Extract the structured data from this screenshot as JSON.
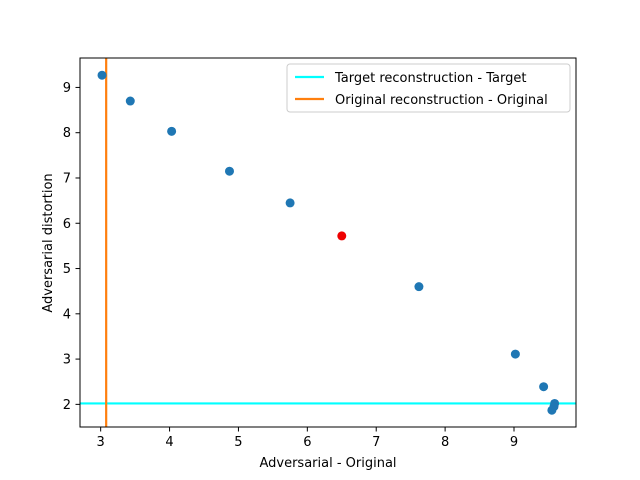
{
  "chart_data": {
    "type": "scatter",
    "xlabel": "Adversarial - Original",
    "ylabel": "Adversarial distortion",
    "xlim": [
      2.7,
      9.9
    ],
    "ylim": [
      1.5,
      9.65
    ],
    "xticks": [
      3,
      4,
      5,
      6,
      7,
      8,
      9
    ],
    "yticks": [
      2,
      3,
      4,
      5,
      6,
      7,
      8,
      9
    ],
    "grid": false,
    "legend_position": "top-right",
    "series": [
      {
        "color": "#1f77b4",
        "points": [
          {
            "x": 3.02,
            "y": 9.27
          },
          {
            "x": 3.43,
            "y": 8.7
          },
          {
            "x": 4.03,
            "y": 8.03
          },
          {
            "x": 4.87,
            "y": 7.15
          },
          {
            "x": 5.75,
            "y": 6.45
          },
          {
            "x": 7.62,
            "y": 4.6
          },
          {
            "x": 9.02,
            "y": 3.11
          },
          {
            "x": 9.43,
            "y": 2.39
          },
          {
            "x": 9.59,
            "y": 2.02
          },
          {
            "x": 9.58,
            "y": 1.95
          },
          {
            "x": 9.55,
            "y": 1.87
          }
        ]
      },
      {
        "color": "#ee0000",
        "points": [
          {
            "x": 6.5,
            "y": 5.72
          }
        ]
      }
    ],
    "reference_lines": [
      {
        "name": "Target reconstruction - Target",
        "orientation": "horizontal",
        "value": 2.02,
        "color": "#00ffff"
      },
      {
        "name": "Original reconstruction - Original",
        "orientation": "vertical",
        "value": 3.08,
        "color": "#ff7f0e"
      }
    ]
  }
}
